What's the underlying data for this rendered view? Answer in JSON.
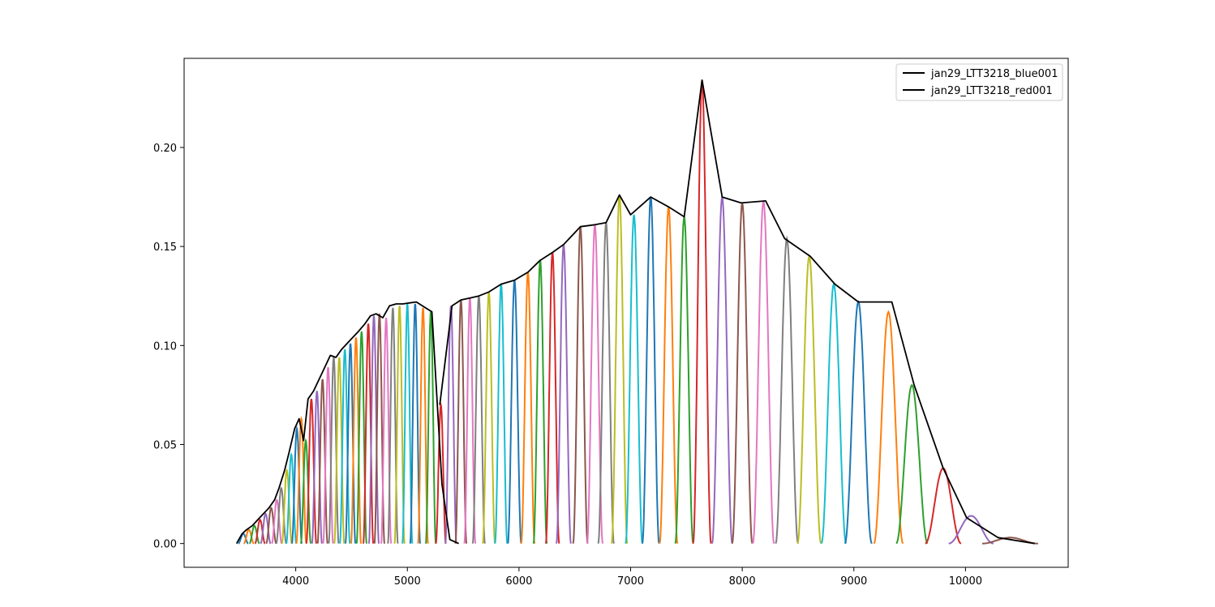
{
  "chart_data": {
    "type": "line",
    "title": "",
    "xlabel": "",
    "ylabel": "",
    "xlim": [
      3000,
      10920
    ],
    "ylim": [
      -0.012,
      0.245
    ],
    "grid": false,
    "legend_placement": "top-right",
    "x_ticks": [
      4000,
      5000,
      6000,
      7000,
      8000,
      9000,
      10000
    ],
    "x_tick_labels": [
      "4000",
      "5000",
      "6000",
      "7000",
      "8000",
      "9000",
      "10000"
    ],
    "y_ticks": [
      0.0,
      0.05,
      0.1,
      0.15,
      0.2
    ],
    "y_tick_labels": [
      "0.00",
      "0.05",
      "0.10",
      "0.15",
      "0.20"
    ],
    "series": [
      {
        "name": "jan29_LTT3218_blue001",
        "color": "#000000",
        "x": [
          3470,
          3520,
          3560,
          3610,
          3660,
          3710,
          3760,
          3810,
          3850,
          3900,
          3940,
          3990,
          4030,
          4070,
          4110,
          4160,
          4210,
          4260,
          4310,
          4360,
          4410,
          4460,
          4510,
          4560,
          4620,
          4670,
          4720,
          4780,
          4840,
          4900,
          4960,
          5080,
          5220,
          5310,
          5380,
          5460
        ],
        "y": [
          0.0,
          0.005,
          0.007,
          0.009,
          0.012,
          0.015,
          0.018,
          0.022,
          0.028,
          0.037,
          0.046,
          0.058,
          0.063,
          0.052,
          0.073,
          0.077,
          0.083,
          0.089,
          0.095,
          0.094,
          0.098,
          0.101,
          0.104,
          0.107,
          0.111,
          0.115,
          0.116,
          0.114,
          0.12,
          0.121,
          0.121,
          0.122,
          0.117,
          0.03,
          0.002,
          0.0
        ]
      },
      {
        "name": "jan29_LTT3218_red001",
        "color": "#000000",
        "x": [
          5290,
          5400,
          5480,
          5560,
          5640,
          5730,
          5840,
          5960,
          6080,
          6190,
          6300,
          6400,
          6550,
          6680,
          6780,
          6900,
          7000,
          7180,
          7340,
          7480,
          7640,
          7820,
          7990,
          8210,
          8380,
          8610,
          8830,
          9040,
          9340,
          9540,
          9800,
          10010,
          10290,
          10620
        ],
        "y": [
          0.07,
          0.12,
          0.123,
          0.124,
          0.125,
          0.127,
          0.131,
          0.133,
          0.137,
          0.143,
          0.147,
          0.151,
          0.16,
          0.161,
          0.162,
          0.176,
          0.166,
          0.175,
          0.17,
          0.165,
          0.234,
          0.175,
          0.172,
          0.173,
          0.154,
          0.145,
          0.131,
          0.122,
          0.122,
          0.08,
          0.038,
          0.013,
          0.003,
          0.0
        ]
      }
    ],
    "echelle_orders": {
      "colors": [
        "#1f77b4",
        "#ff7f0e",
        "#2ca02c",
        "#d62728",
        "#9467bd",
        "#8c564b",
        "#e377c2",
        "#7f7f7f",
        "#bcbd22",
        "#17becf"
      ],
      "centers": [
        3530,
        3580,
        3630,
        3680,
        3730,
        3780,
        3830,
        3870,
        3920,
        3960,
        4010,
        4050,
        4090,
        4140,
        4190,
        4240,
        4290,
        4340,
        4390,
        4440,
        4490,
        4540,
        4590,
        4650,
        4700,
        4750,
        4810,
        4870,
        4930,
        5000,
        5070,
        5140,
        5210,
        5300,
        5390,
        5480,
        5560,
        5640,
        5730,
        5840,
        5960,
        6080,
        6190,
        6300,
        6400,
        6550,
        6680,
        6780,
        6900,
        7030,
        7180,
        7340,
        7480,
        7640,
        7820,
        8000,
        8190,
        8400,
        8600,
        8820,
        9040,
        9310,
        9520,
        9800,
        10050,
        10400
      ],
      "peaks": [
        0.005,
        0.007,
        0.009,
        0.012,
        0.015,
        0.018,
        0.022,
        0.028,
        0.037,
        0.045,
        0.058,
        0.063,
        0.052,
        0.073,
        0.077,
        0.083,
        0.089,
        0.094,
        0.094,
        0.098,
        0.101,
        0.104,
        0.107,
        0.111,
        0.115,
        0.116,
        0.114,
        0.119,
        0.12,
        0.121,
        0.121,
        0.119,
        0.117,
        0.07,
        0.12,
        0.123,
        0.124,
        0.125,
        0.127,
        0.131,
        0.133,
        0.137,
        0.143,
        0.147,
        0.151,
        0.16,
        0.161,
        0.162,
        0.176,
        0.166,
        0.175,
        0.17,
        0.165,
        0.234,
        0.175,
        0.172,
        0.173,
        0.154,
        0.145,
        0.131,
        0.122,
        0.117,
        0.08,
        0.038,
        0.014,
        0.003
      ],
      "half_widths": [
        45,
        45,
        45,
        45,
        45,
        45,
        45,
        45,
        45,
        45,
        45,
        45,
        45,
        45,
        45,
        45,
        45,
        45,
        45,
        45,
        45,
        45,
        45,
        45,
        45,
        45,
        45,
        45,
        45,
        45,
        45,
        45,
        45,
        45,
        50,
        50,
        50,
        55,
        55,
        55,
        60,
        60,
        60,
        60,
        65,
        65,
        70,
        70,
        70,
        75,
        75,
        80,
        80,
        80,
        90,
        90,
        95,
        100,
        105,
        110,
        120,
        130,
        140,
        160,
        200,
        250
      ]
    }
  }
}
